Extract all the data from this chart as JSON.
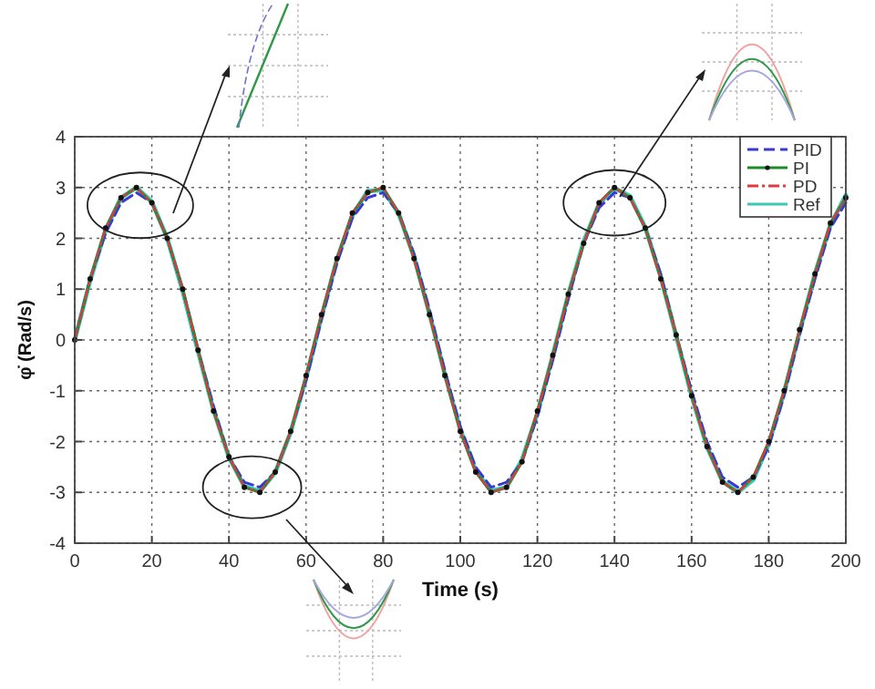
{
  "chart_data": {
    "type": "line",
    "xlabel": "Time (s)",
    "ylabel": "φ̇ (Rad/s)",
    "xlim": [
      0,
      200
    ],
    "ylim": [
      -4,
      4
    ],
    "xticks": [
      0,
      20,
      40,
      60,
      80,
      100,
      120,
      140,
      160,
      180,
      200
    ],
    "yticks": [
      -4,
      -3,
      -2,
      -1,
      0,
      1,
      2,
      3,
      4
    ],
    "grid": true,
    "legend": "top right",
    "x": [
      0,
      4,
      8,
      12,
      16,
      20,
      24,
      28,
      32,
      36,
      40,
      44,
      48,
      52,
      56,
      60,
      64,
      68,
      72,
      76,
      80,
      84,
      88,
      92,
      96,
      100,
      104,
      108,
      112,
      116,
      120,
      124,
      128,
      132,
      136,
      140,
      144,
      148,
      152,
      156,
      160,
      164,
      168,
      172,
      176,
      180,
      184,
      188,
      192,
      196,
      200
    ],
    "series": [
      {
        "name": "PID",
        "color": "#3a3ad0",
        "line_style": "dashed",
        "marker": "none",
        "values": [
          0,
          1.2,
          2.1,
          2.7,
          2.9,
          2.7,
          2.0,
          1.0,
          -0.2,
          -1.3,
          -2.3,
          -2.8,
          -2.9,
          -2.6,
          -1.8,
          -0.8,
          0.4,
          1.5,
          2.4,
          2.8,
          2.9,
          2.5,
          1.7,
          0.6,
          -0.6,
          -1.7,
          -2.5,
          -2.9,
          -2.8,
          -2.4,
          -1.5,
          -0.4,
          0.8,
          1.9,
          2.6,
          2.9,
          2.8,
          2.2,
          1.3,
          0.1,
          -1.0,
          -2.0,
          -2.7,
          -2.9,
          -2.7,
          -2.1,
          -1.1,
          0.1,
          1.2,
          2.2,
          2.7
        ]
      },
      {
        "name": "PI",
        "color": "#1f8a2a",
        "line_style": "solid",
        "marker": "circle",
        "values": [
          0,
          1.2,
          2.2,
          2.8,
          3.0,
          2.7,
          2.0,
          1.0,
          -0.2,
          -1.4,
          -2.3,
          -2.9,
          -3.0,
          -2.6,
          -1.8,
          -0.7,
          0.5,
          1.6,
          2.5,
          2.9,
          3.0,
          2.5,
          1.6,
          0.5,
          -0.7,
          -1.8,
          -2.6,
          -3.0,
          -2.9,
          -2.4,
          -1.4,
          -0.3,
          0.9,
          1.9,
          2.7,
          3.0,
          2.8,
          2.2,
          1.2,
          0.1,
          -1.1,
          -2.1,
          -2.8,
          -3.0,
          -2.7,
          -2.0,
          -1.0,
          0.2,
          1.3,
          2.3,
          2.8
        ]
      },
      {
        "name": "PD",
        "color": "#e03a3a",
        "line_style": "dashdot",
        "marker": "none",
        "values": [
          0,
          1.2,
          2.2,
          2.8,
          3.0,
          2.7,
          2.0,
          1.0,
          -0.2,
          -1.4,
          -2.3,
          -2.9,
          -3.0,
          -2.6,
          -1.8,
          -0.7,
          0.5,
          1.6,
          2.5,
          2.9,
          3.0,
          2.5,
          1.6,
          0.5,
          -0.7,
          -1.8,
          -2.6,
          -3.0,
          -2.9,
          -2.4,
          -1.4,
          -0.3,
          0.9,
          1.9,
          2.7,
          3.0,
          2.8,
          2.2,
          1.2,
          0.1,
          -1.1,
          -2.1,
          -2.8,
          -3.0,
          -2.7,
          -2.0,
          -1.0,
          0.2,
          1.3,
          2.3,
          2.8
        ]
      },
      {
        "name": "Ref",
        "color": "#3cc8b4",
        "line_style": "solid",
        "marker": "none",
        "values": [
          0,
          1.17,
          2.16,
          2.8,
          3.0,
          2.72,
          2.0,
          0.96,
          -0.23,
          -1.38,
          -2.31,
          -2.88,
          -2.98,
          -2.61,
          -1.82,
          -0.75,
          0.45,
          1.58,
          2.45,
          2.93,
          2.95,
          2.49,
          1.64,
          0.52,
          -0.67,
          -1.76,
          -2.57,
          -2.97,
          -2.9,
          -2.36,
          -1.45,
          -0.3,
          0.89,
          1.94,
          2.68,
          2.99,
          2.83,
          2.21,
          1.24,
          0.08,
          -1.1,
          -2.11,
          -2.78,
          -3.0,
          -2.75,
          -2.05,
          -1.03,
          0.15,
          1.31,
          2.26,
          2.85
        ]
      }
    ]
  }
}
